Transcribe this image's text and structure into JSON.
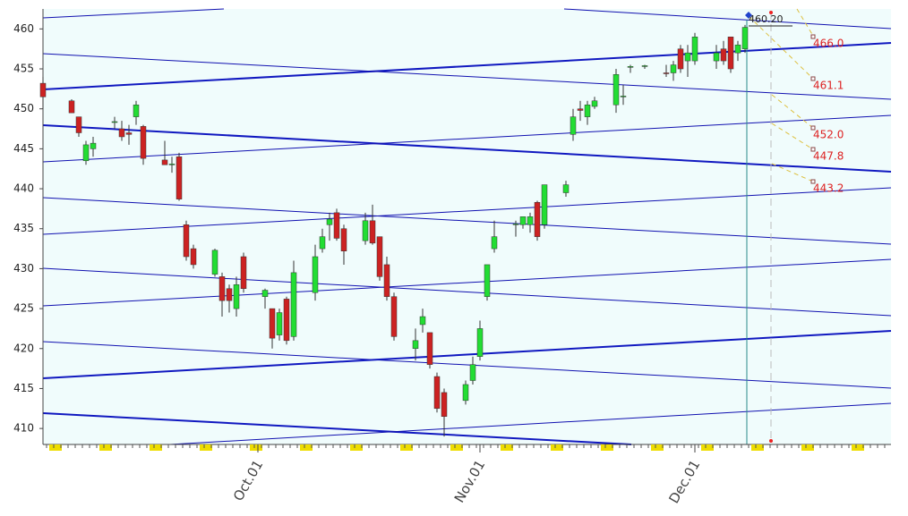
{
  "chart_data": {
    "type": "candlestick",
    "categories": [
      null,
      null,
      null,
      null,
      null,
      null,
      null,
      null,
      null,
      null,
      null,
      null,
      null,
      null,
      null,
      null,
      null,
      null,
      null,
      null,
      null,
      null,
      null,
      null,
      null,
      null,
      null,
      null,
      null,
      null,
      "Oct.01",
      null,
      null,
      null,
      null,
      null,
      null,
      null,
      null,
      null,
      null,
      null,
      null,
      null,
      null,
      null,
      null,
      null,
      null,
      null,
      null,
      null,
      null,
      null,
      null,
      null,
      null,
      null,
      null,
      null,
      null,
      "Nov.01",
      null,
      null,
      null,
      null,
      null,
      null,
      null,
      null,
      null,
      null,
      null,
      null,
      null,
      null,
      null,
      null,
      null,
      null,
      null,
      null,
      null,
      null,
      null,
      null,
      null,
      null,
      null,
      null,
      null,
      "Dec.01",
      null,
      null,
      null,
      null,
      null,
      null,
      null
    ],
    "open": [
      453.2,
      null,
      null,
      null,
      451,
      449,
      443.5,
      445,
      null,
      null,
      448.3,
      447.5,
      447,
      449,
      447.8,
      null,
      null,
      443.6,
      443,
      444,
      435.5,
      432.5,
      null,
      null,
      429.3,
      429,
      427.5,
      425,
      431.5,
      null,
      null,
      426.5,
      425,
      421.7,
      426.2,
      421.5,
      null,
      null,
      427,
      432.5,
      435.5,
      437,
      435,
      null,
      null,
      433.5,
      436,
      434,
      430.5,
      426.5,
      null,
      null,
      420,
      423,
      422,
      416.5,
      414.5,
      null,
      null,
      413.5,
      416,
      419,
      426.5,
      432.5,
      null,
      null,
      435.5,
      435.5,
      435.5,
      438.3,
      435.5,
      null,
      null,
      439.5,
      446.8,
      450,
      449,
      450.3,
      null,
      null,
      450.5,
      451.5,
      455.2,
      null,
      455.3,
      null,
      null,
      454.5,
      454.5,
      457.5,
      456,
      456,
      null,
      null,
      456,
      457.5,
      459,
      457,
      457.5
    ],
    "high": [
      454,
      null,
      null,
      null,
      451.2,
      449,
      446,
      446.5,
      null,
      null,
      449,
      448.5,
      448,
      451,
      448,
      null,
      null,
      446,
      444,
      444.5,
      436,
      433,
      null,
      null,
      432.5,
      429.5,
      428,
      429,
      432,
      null,
      null,
      427.5,
      425,
      425,
      426.5,
      431,
      null,
      null,
      433,
      435,
      437,
      437.5,
      435.5,
      null,
      null,
      437,
      438,
      434,
      431.5,
      427,
      null,
      null,
      422.5,
      425,
      422,
      417,
      415,
      null,
      null,
      416,
      419,
      423.5,
      430.5,
      436,
      null,
      null,
      436,
      436.5,
      437,
      438.5,
      440.5,
      null,
      null,
      441,
      450,
      451,
      451,
      451.5,
      null,
      null,
      455,
      453,
      455.5,
      null,
      455.5,
      null,
      null,
      455.5,
      456,
      458,
      458,
      459.5,
      null,
      null,
      458,
      458.5,
      459,
      458.5,
      460.5
    ],
    "low": [
      450,
      null,
      null,
      null,
      449.5,
      446.5,
      443,
      444,
      null,
      null,
      447.5,
      446,
      445.5,
      448,
      443,
      null,
      null,
      443,
      442,
      438.5,
      431,
      430,
      null,
      null,
      429,
      424,
      424.5,
      424,
      427,
      null,
      null,
      425,
      420,
      421,
      420.5,
      421,
      null,
      null,
      426,
      432,
      433.5,
      433.5,
      430.5,
      null,
      null,
      433,
      433,
      428.5,
      426,
      421,
      null,
      null,
      418.5,
      422,
      417.5,
      412,
      409,
      null,
      null,
      413,
      415.5,
      418.5,
      426,
      432,
      null,
      null,
      434,
      435,
      434.5,
      433.5,
      435,
      null,
      null,
      439,
      446,
      448.5,
      448,
      450,
      null,
      null,
      449.5,
      450.5,
      454.5,
      null,
      455,
      null,
      null,
      454,
      453.5,
      454.5,
      454,
      455.5,
      null,
      null,
      455,
      455.5,
      454.5,
      456,
      457
    ],
    "close": [
      451.5,
      null,
      null,
      null,
      449.5,
      447,
      445.5,
      445.7,
      null,
      null,
      448.4,
      446.5,
      446.8,
      450.5,
      443.8,
      null,
      null,
      443,
      443.1,
      438.7,
      431.5,
      430.5,
      null,
      null,
      432.3,
      426,
      426,
      428,
      427.5,
      null,
      null,
      427.3,
      421.3,
      424.5,
      421,
      429.5,
      null,
      null,
      431.5,
      434,
      436.2,
      433.8,
      432.2,
      null,
      null,
      436,
      433.2,
      429,
      426.5,
      421.5,
      null,
      null,
      421,
      424,
      418,
      412.5,
      411.5,
      null,
      null,
      415.5,
      418,
      422.5,
      430.5,
      434,
      null,
      null,
      435.6,
      436.5,
      436.5,
      434,
      440.5,
      null,
      null,
      440.5,
      449,
      449.8,
      450.5,
      451,
      null,
      null,
      454.3,
      451.6,
      455.3,
      null,
      455.4,
      null,
      null,
      454.4,
      455.5,
      455,
      457,
      459,
      null,
      null,
      457,
      456,
      455,
      458,
      460.2
    ],
    "up_color": "#22dd33",
    "down_color": "#cc2222",
    "annotations": [
      "460.20",
      "466.0",
      "461.1",
      "452.0",
      "447.8",
      "443.2"
    ],
    "ylim": [
      408,
      462.5
    ],
    "yticks": [
      410,
      415,
      420,
      425,
      430,
      435,
      440,
      445,
      450,
      455,
      460
    ]
  }
}
